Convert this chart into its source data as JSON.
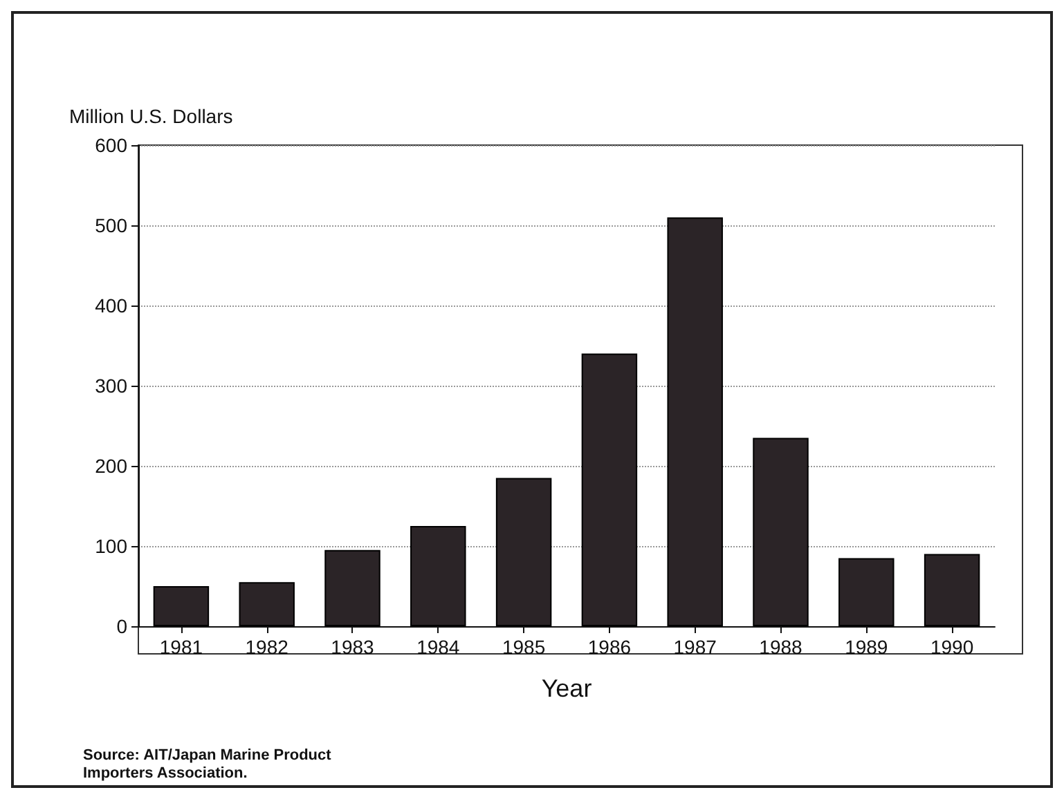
{
  "chart_data": {
    "type": "bar",
    "ylabel": "Million U.S. Dollars",
    "xlabel": "Year",
    "categories": [
      "1981",
      "1982",
      "1983",
      "1984",
      "1985",
      "1986",
      "1987",
      "1988",
      "1989",
      "1990"
    ],
    "values": [
      50,
      55,
      95,
      125,
      185,
      340,
      510,
      235,
      85,
      90
    ],
    "color": "#2b2427",
    "ylim": [
      0,
      600
    ],
    "yticks": [
      0,
      100,
      200,
      300,
      400,
      500,
      600
    ],
    "grid": "y",
    "annotations": [
      "Source: AIT/Japan Marine Product\nImporters Association."
    ]
  }
}
